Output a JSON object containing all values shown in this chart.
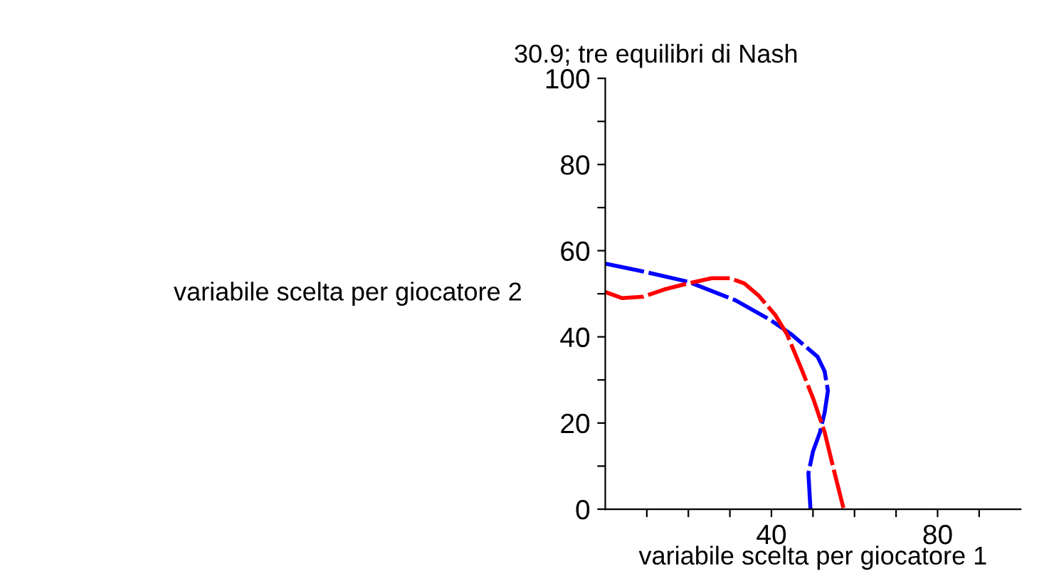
{
  "chart_data": {
    "type": "line",
    "title": "30.9; tre equilibri di Nash",
    "xlabel": "variabile scelta per giocatore 1",
    "ylabel": "variabile scelta per giocatore 2",
    "xlim": [
      0,
      100
    ],
    "ylim": [
      0,
      100
    ],
    "xticks": [
      {
        "value": 10,
        "label": null
      },
      {
        "value": 20,
        "label": null
      },
      {
        "value": 30,
        "label": null
      },
      40,
      {
        "value": 50,
        "label": null
      },
      {
        "value": 60,
        "label": null
      },
      {
        "value": 70,
        "label": null
      },
      80,
      {
        "value": 90,
        "label": null
      }
    ],
    "yticks": [
      0,
      {
        "value": 10,
        "label": null
      },
      20,
      {
        "value": 30,
        "label": null
      },
      40,
      {
        "value": 50,
        "label": null
      },
      60,
      {
        "value": 70,
        "label": null
      },
      80,
      {
        "value": 90,
        "label": null
      },
      100
    ],
    "grid": false,
    "marker": "none",
    "line_style": "dashed",
    "series": [
      {
        "color": "#0000ff",
        "x": [
          0,
          8.5,
          19.9,
          31.3,
          39.8,
          44.9,
          51.1,
          52.8,
          53.6,
          52.8,
          51.7,
          50,
          48.9,
          49.4
        ],
        "values": [
          57,
          55.3,
          52.8,
          48.5,
          43.9,
          40.5,
          35.4,
          32,
          27.5,
          22.4,
          17.9,
          13.4,
          8.3,
          0
        ]
      },
      {
        "color": "#ff0000",
        "x": [
          0,
          4,
          9.1,
          14.2,
          19.9,
          25.6,
          30.1,
          33.5,
          36.9,
          40.9,
          43.8,
          47.2,
          50,
          52.8,
          55.1,
          57.4
        ],
        "values": [
          50.4,
          49,
          49.3,
          51,
          52.4,
          53.6,
          53.6,
          52.4,
          49.6,
          45.1,
          40.5,
          32.6,
          25.8,
          17.9,
          8.8,
          0
        ]
      }
    ]
  }
}
